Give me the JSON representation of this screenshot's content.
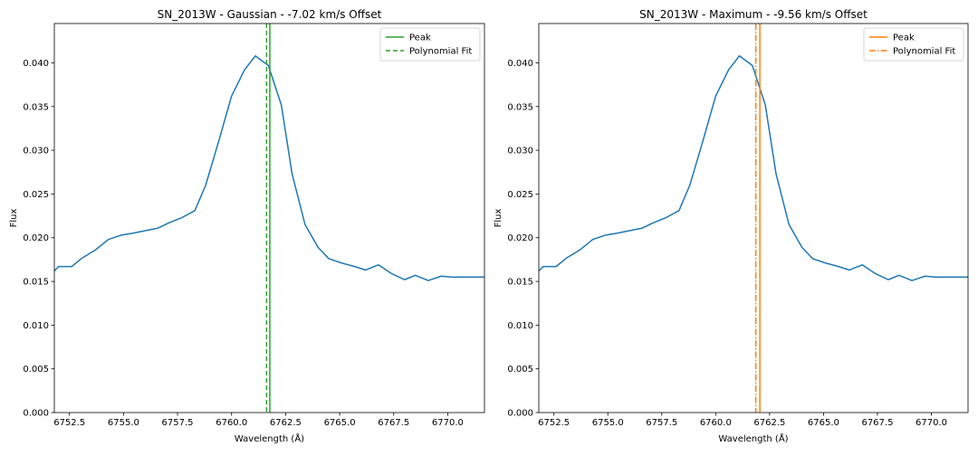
{
  "chart_data": [
    {
      "type": "line",
      "title": "SN_2013W - Gaussian - -7.02 km/s Offset",
      "xlabel": "Wavelength (Å)",
      "ylabel": "Flux",
      "xlim": [
        6751.8,
        6771.7
      ],
      "ylim": [
        0.0,
        0.0445
      ],
      "xticks": [
        6752.5,
        6755.0,
        6757.5,
        6760.0,
        6762.5,
        6765.0,
        6767.5,
        6770.0
      ],
      "xtick_labels": [
        "6752.5",
        "6755.0",
        "6757.5",
        "6760.0",
        "6762.5",
        "6765.0",
        "6767.5",
        "6770.0"
      ],
      "yticks": [
        0.0,
        0.005,
        0.01,
        0.015,
        0.02,
        0.025,
        0.03,
        0.035,
        0.04
      ],
      "ytick_labels": [
        "0.000",
        "0.005",
        "0.010",
        "0.015",
        "0.020",
        "0.025",
        "0.030",
        "0.035",
        "0.040"
      ],
      "grid": false,
      "legend_position": "top-right",
      "series": [
        {
          "color": "#1f77b4",
          "x": [
            6751.8,
            6752.0,
            6752.6,
            6753.1,
            6753.7,
            6754.3,
            6754.9,
            6755.4,
            6756.0,
            6756.6,
            6757.1,
            6757.7,
            6758.3,
            6758.8,
            6759.4,
            6760.0,
            6760.6,
            6761.1,
            6761.7,
            6762.3,
            6762.8,
            6763.4,
            6764.0,
            6764.5,
            6765.1,
            6765.7,
            6766.2,
            6766.8,
            6767.4,
            6768.0,
            6768.5,
            6769.1,
            6769.7,
            6770.2,
            6770.8,
            6771.4,
            6771.7
          ],
          "y": [
            0.0162,
            0.0167,
            0.0167,
            0.0177,
            0.0186,
            0.0198,
            0.0203,
            0.0205,
            0.0208,
            0.0211,
            0.0217,
            0.0223,
            0.0231,
            0.026,
            0.031,
            0.0362,
            0.0392,
            0.0408,
            0.0397,
            0.0352,
            0.0273,
            0.0215,
            0.0189,
            0.0176,
            0.0171,
            0.0167,
            0.0163,
            0.0169,
            0.0159,
            0.0152,
            0.0157,
            0.0151,
            0.0156,
            0.0155,
            0.0155,
            0.0155,
            0.0155
          ]
        }
      ],
      "vlines": [
        {
          "name": "Peak",
          "x": 6761.77,
          "color": "#2ca02c",
          "style": "solid"
        },
        {
          "name": "Polynomial Fit",
          "x": 6761.62,
          "color": "#2ca02c",
          "style": "dashed"
        }
      ]
    },
    {
      "type": "line",
      "title": "SN_2013W - Maximum - -9.56 km/s Offset",
      "xlabel": "Wavelength (Å)",
      "ylabel": "Flux",
      "xlim": [
        6751.8,
        6771.7
      ],
      "ylim": [
        0.0,
        0.0445
      ],
      "xticks": [
        6752.5,
        6755.0,
        6757.5,
        6760.0,
        6762.5,
        6765.0,
        6767.5,
        6770.0
      ],
      "xtick_labels": [
        "6752.5",
        "6755.0",
        "6757.5",
        "6760.0",
        "6762.5",
        "6765.0",
        "6767.5",
        "6770.0"
      ],
      "yticks": [
        0.0,
        0.005,
        0.01,
        0.015,
        0.02,
        0.025,
        0.03,
        0.035,
        0.04
      ],
      "ytick_labels": [
        "0.000",
        "0.005",
        "0.010",
        "0.015",
        "0.020",
        "0.025",
        "0.030",
        "0.035",
        "0.040"
      ],
      "grid": false,
      "legend_position": "top-right",
      "series": [
        {
          "color": "#1f77b4",
          "x": [
            6751.8,
            6752.0,
            6752.6,
            6753.1,
            6753.7,
            6754.3,
            6754.9,
            6755.4,
            6756.0,
            6756.6,
            6757.1,
            6757.7,
            6758.3,
            6758.8,
            6759.4,
            6760.0,
            6760.6,
            6761.1,
            6761.7,
            6762.3,
            6762.8,
            6763.4,
            6764.0,
            6764.5,
            6765.1,
            6765.7,
            6766.2,
            6766.8,
            6767.4,
            6768.0,
            6768.5,
            6769.1,
            6769.7,
            6770.2,
            6770.8,
            6771.4,
            6771.7
          ],
          "y": [
            0.0162,
            0.0167,
            0.0167,
            0.0177,
            0.0186,
            0.0198,
            0.0203,
            0.0205,
            0.0208,
            0.0211,
            0.0217,
            0.0223,
            0.0231,
            0.026,
            0.031,
            0.0362,
            0.0392,
            0.0408,
            0.0397,
            0.0352,
            0.0273,
            0.0215,
            0.0189,
            0.0176,
            0.0171,
            0.0167,
            0.0163,
            0.0169,
            0.0159,
            0.0152,
            0.0157,
            0.0151,
            0.0156,
            0.0155,
            0.0155,
            0.0155,
            0.0155
          ]
        }
      ],
      "vlines": [
        {
          "name": "Peak",
          "x": 6762.05,
          "color": "#ff7f0e",
          "style": "solid"
        },
        {
          "name": "Polynomial Fit",
          "x": 6761.86,
          "color": "#ff7f0e",
          "style": "dashdot"
        }
      ]
    }
  ]
}
